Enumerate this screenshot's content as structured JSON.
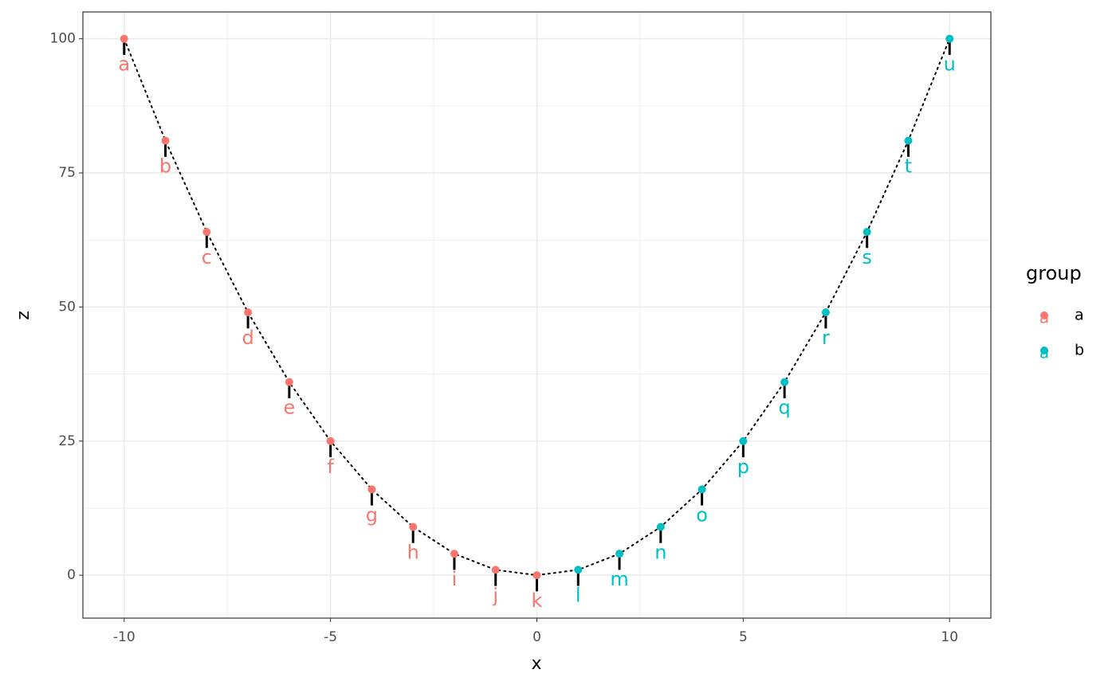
{
  "chart_data": {
    "type": "scatter",
    "x_label": "x",
    "y_label": "z",
    "xlim": [
      -11,
      11
    ],
    "ylim": [
      -8,
      105
    ],
    "xticks": [
      -10,
      -5,
      0,
      5,
      10
    ],
    "yticks": [
      0,
      25,
      50,
      75,
      100
    ],
    "minor_xticks": [
      -7.5,
      -2.5,
      2.5,
      7.5
    ],
    "minor_yticks": [
      12.5,
      37.5,
      62.5,
      87.5
    ],
    "grid": true,
    "segment_length": 3,
    "legend_title": "group",
    "legend_position": "right",
    "legend_key_glyph": "a",
    "series": [
      {
        "name": "a",
        "color": "#F8766D",
        "x": [
          -10,
          -9,
          -8,
          -7,
          -6,
          -5,
          -4,
          -3,
          -2,
          -1,
          0
        ],
        "values": [
          100,
          81,
          64,
          49,
          36,
          25,
          16,
          9,
          4,
          1,
          0
        ],
        "labels": [
          "a",
          "b",
          "c",
          "d",
          "e",
          "f",
          "g",
          "h",
          "i",
          "j",
          "k"
        ]
      },
      {
        "name": "b",
        "color": "#00BFC4",
        "x": [
          1,
          2,
          3,
          4,
          5,
          6,
          7,
          8,
          9,
          10
        ],
        "values": [
          1,
          4,
          9,
          16,
          25,
          36,
          49,
          64,
          81,
          100
        ],
        "labels": [
          "l",
          "m",
          "n",
          "o",
          "p",
          "q",
          "r",
          "s",
          "t",
          "u"
        ]
      }
    ]
  }
}
